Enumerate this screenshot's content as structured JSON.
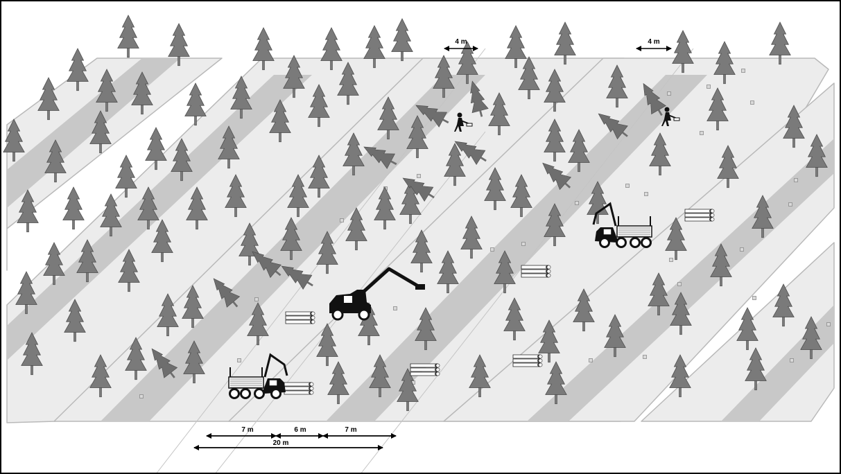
{
  "colors": {
    "background": "#ffffff",
    "frame": "#000000",
    "strip_outline": "#b9b9b9",
    "strip_light": "#ececec",
    "strip_band": "#c8c8c8",
    "tree": "#7a7a7a",
    "tree_outline": "#4a4a4a",
    "felled_tree": "#6e6e6e",
    "machine": "#111111",
    "log": "#ffffff",
    "marker": "#999999"
  },
  "icons": {
    "tree": "conifer-icon",
    "felled_tree": "felled-conifer-icon",
    "harvester": "harvester-icon",
    "forwarder": "forwarder-icon",
    "worker": "chainsaw-worker-icon",
    "log_pile": "log-pile-icon",
    "stump": "stump-marker-icon"
  },
  "dimensions": {
    "trail_width_top_left": "4 m",
    "trail_width_top_right": "4 m",
    "strip_left": "7 m",
    "trail_middle": "6 m",
    "strip_right": "7 m",
    "total_width": "20 m"
  }
}
